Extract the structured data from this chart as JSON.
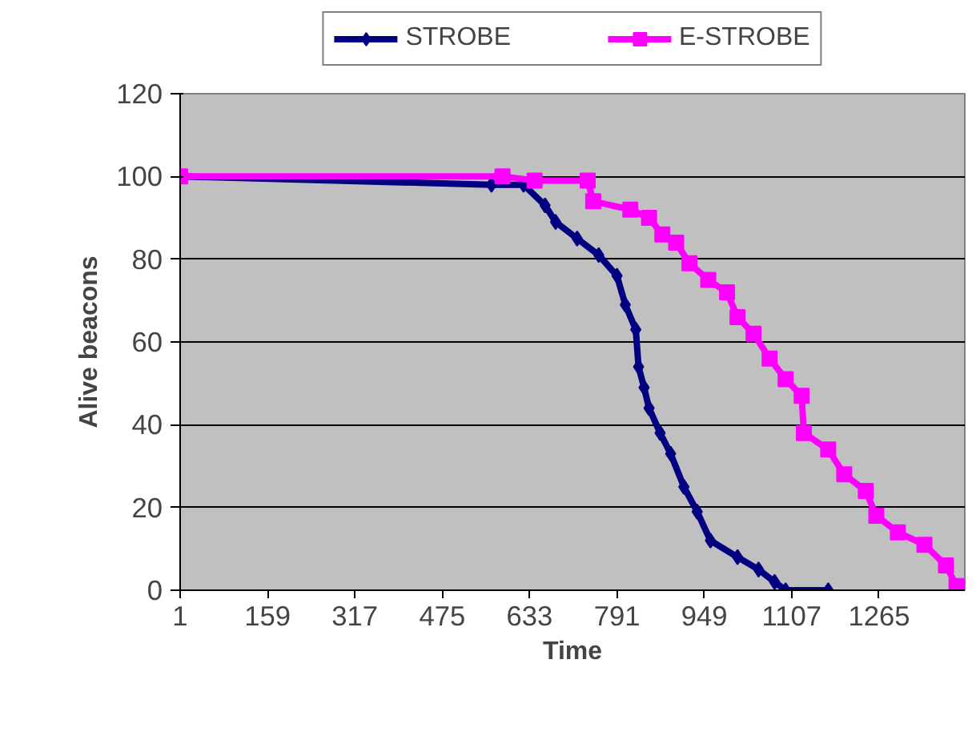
{
  "chart_data": {
    "type": "line",
    "xlabel": "Time",
    "ylabel": "Alive beacons",
    "xlim": [
      1,
      1420
    ],
    "xticks": [
      1,
      159,
      317,
      475,
      633,
      791,
      949,
      1107,
      1265
    ],
    "ylim": [
      0,
      120
    ],
    "yticks": [
      0,
      20,
      40,
      60,
      80,
      100,
      120
    ],
    "grid": "y",
    "legend": "top",
    "series": [
      {
        "name": "STROBE",
        "color": "#000080",
        "marker": "diamond",
        "x": [
          1,
          564,
          622,
          661,
          680,
          719,
          758,
          791,
          806,
          825,
          830,
          840,
          849,
          869,
          888,
          912,
          936,
          960,
          1009,
          1047,
          1076,
          1096,
          1173
        ],
        "values": [
          100,
          98,
          98,
          93,
          89,
          85,
          81,
          76,
          69,
          63,
          54,
          49,
          44,
          38,
          33,
          25,
          19,
          12,
          8,
          5,
          2,
          0,
          0
        ]
      },
      {
        "name": "E-STROBE",
        "color": "#ff00ff",
        "marker": "square",
        "x": [
          1,
          584,
          642,
          738,
          748,
          815,
          849,
          873,
          898,
          922,
          956,
          990,
          1009,
          1038,
          1067,
          1096,
          1125,
          1129,
          1173,
          1202,
          1241,
          1260,
          1299,
          1347,
          1386,
          1405,
          1418
        ],
        "values": [
          100,
          100,
          99,
          99,
          94,
          92,
          90,
          86,
          84,
          79,
          75,
          72,
          66,
          62,
          56,
          51,
          47,
          38,
          34,
          28,
          24,
          18,
          14,
          11,
          6,
          1,
          0
        ]
      }
    ]
  }
}
